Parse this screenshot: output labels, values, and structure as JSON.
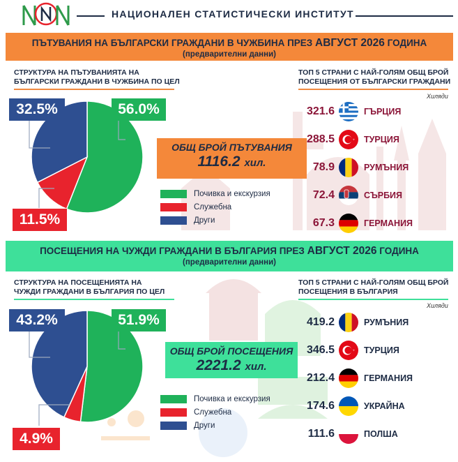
{
  "header": {
    "institute_name": "НАЦИОНАЛЕН СТАТИСТИЧЕСКИ ИНСТИТУТ"
  },
  "section1": {
    "title_part1": "ПЪТУВАНИЯ НА БЪЛГАРСКИ ГРАЖДАНИ В ЧУЖБИНА ПРЕЗ ",
    "title_part2": "АВГУСТ 2026",
    "title_part3": " ГОДИНА",
    "subtitle": "(предварителни данни)",
    "pie_title_line1": "СТРУКТУРА НА ПЪТУВАНИЯТА НА",
    "pie_title_line2": "БЪЛГАРСКИ ГРАЖДАНИ В ЧУЖБИНА ПО ЦЕЛ",
    "top_title_line1": "ТОП 5 СТРАНИ С НАЙ-ГОЛЯМ ОБЩ БРОЙ",
    "top_title_line2": "ПОСЕЩЕНИЯ ОТ БЪЛГАРСКИ ГРАЖДАНИ",
    "unit_note": "Хиляди",
    "total_label": "ОБЩ БРОЙ ПЪТУВАНИЯ",
    "total_value": "1116.2",
    "total_unit": "хил.",
    "labels": {
      "green": "56.0%",
      "red": "11.5%",
      "blue": "32.5%"
    }
  },
  "section2": {
    "title_part1": "ПОСЕЩЕНИЯ НА ЧУЖДИ ГРАЖДАНИ В БЪЛГАРИЯ ПРЕЗ ",
    "title_part2": "АВГУСТ 2026",
    "title_part3": " ГОДИНА",
    "subtitle": "(предварителни данни)",
    "pie_title_line1": "СТРУКТУРА НА ПОСЕЩЕНИЯТА НА",
    "pie_title_line2": "ЧУЖДИ ГРАЖДАНИ В БЪЛГАРИЯ ПО ЦЕЛ",
    "top_title_line1": "ТОП 5 СТРАНИ С НАЙ-ГОЛЯМ ОБЩ БРОЙ",
    "top_title_line2": "ПОСЕЩЕНИЯ В БЪЛГАРИЯ",
    "unit_note": "Хиляди",
    "total_label": "ОБЩ БРОЙ ПОСЕЩЕНИЯ",
    "total_value": "2221.2",
    "total_unit": "хил.",
    "labels": {
      "green": "51.9%",
      "red": "4.9%",
      "blue": "43.2%"
    }
  },
  "legend": {
    "green": "Почивка и екскурзия",
    "red": "Служебна",
    "blue": "Други"
  },
  "colors": {
    "green": "#1fb25a",
    "red": "#e8232d",
    "blue": "#2e4f91",
    "orange": "#f4883a",
    "mint": "#3ee09a",
    "text": "#1d2b44"
  },
  "chart_data": [
    {
      "type": "pie",
      "title": "СТРУКТУРА НА ПЪТУВАНИЯТА НА БЪЛГАРСКИ ГРАЖДАНИ В ЧУЖБИНА ПО ЦЕЛ",
      "categories": [
        "Почивка и екскурзия",
        "Служебна",
        "Други"
      ],
      "values": [
        56.0,
        11.5,
        32.5
      ],
      "colors": [
        "#1fb25a",
        "#e8232d",
        "#2e4f91"
      ]
    },
    {
      "type": "table",
      "title": "ТОП 5 СТРАНИ С НАЙ-ГОЛЯМ ОБЩ БРОЙ ПОСЕЩЕНИЯ ОТ БЪЛГАРСКИ ГРАЖДАНИ",
      "unit": "Хиляди",
      "rows": [
        {
          "value": "321.6",
          "country": "ГЪРЦИЯ",
          "flag": "greece-flag-icon"
        },
        {
          "value": "288.5",
          "country": "ТУРЦИЯ",
          "flag": "turkey-flag-icon"
        },
        {
          "value": "78.9",
          "country": "РУМЪНИЯ",
          "flag": "romania-flag-icon"
        },
        {
          "value": "72.4",
          "country": "СЪРБИЯ",
          "flag": "serbia-flag-icon"
        },
        {
          "value": "67.3",
          "country": "ГЕРМАНИЯ",
          "flag": "germany-flag-icon"
        }
      ]
    },
    {
      "type": "pie",
      "title": "СТРУКТУРА НА ПОСЕЩЕНИЯТА НА ЧУЖДИ ГРАЖДАНИ В БЪЛГАРИЯ ПО ЦЕЛ",
      "categories": [
        "Почивка и екскурзия",
        "Служебна",
        "Други"
      ],
      "values": [
        51.9,
        4.9,
        43.2
      ],
      "colors": [
        "#1fb25a",
        "#e8232d",
        "#2e4f91"
      ]
    },
    {
      "type": "table",
      "title": "ТОП 5 СТРАНИ С НАЙ-ГОЛЯМ ОБЩ БРОЙ ПОСЕЩЕНИЯ В БЪЛГАРИЯ",
      "unit": "Хиляди",
      "rows": [
        {
          "value": "419.2",
          "country": "РУМЪНИЯ",
          "flag": "romania-flag-icon"
        },
        {
          "value": "346.5",
          "country": "ТУРЦИЯ",
          "flag": "turkey-flag-icon"
        },
        {
          "value": "212.4",
          "country": "ГЕРМАНИЯ",
          "flag": "germany-flag-icon"
        },
        {
          "value": "174.6",
          "country": "УКРАЙНА",
          "flag": "ukraine-flag-icon"
        },
        {
          "value": "111.6",
          "country": "ПОЛША",
          "flag": "poland-flag-icon"
        }
      ]
    }
  ]
}
